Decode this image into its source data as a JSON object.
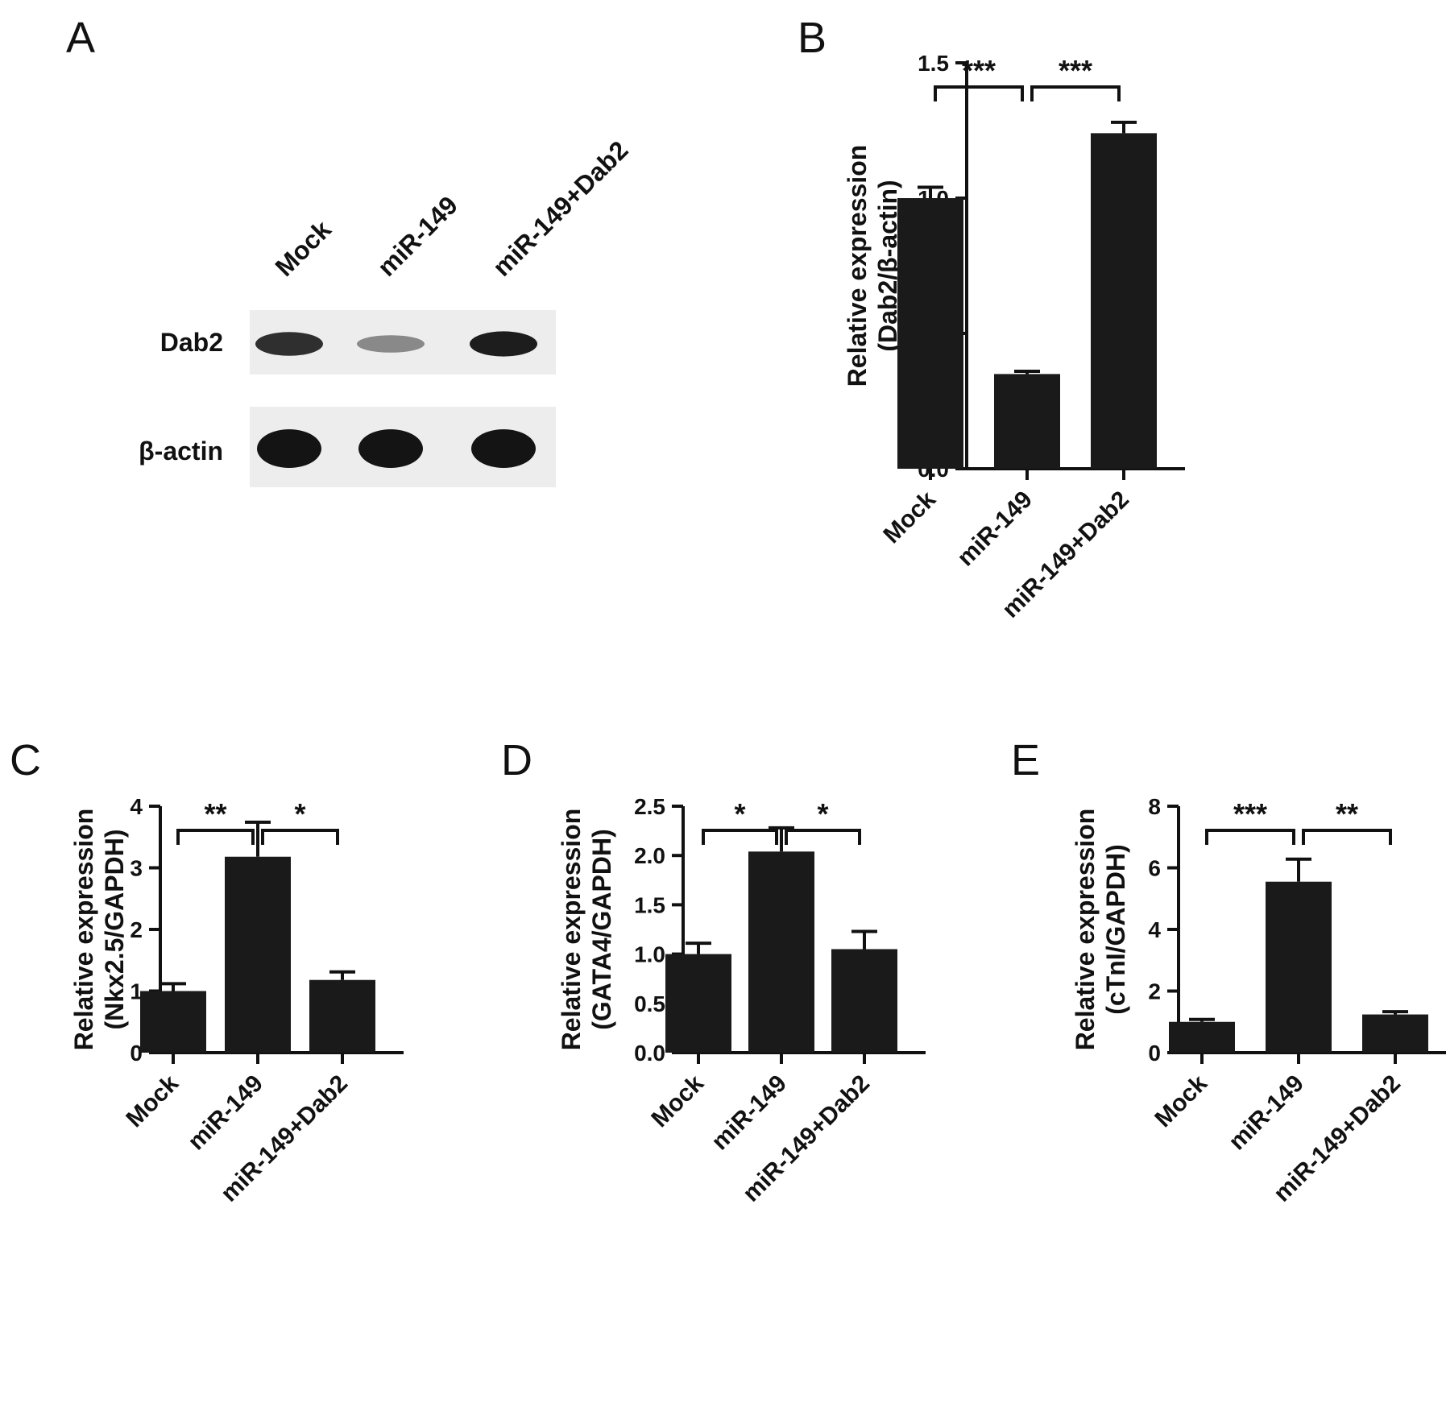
{
  "panel_a": {
    "letter": "A",
    "lanes": [
      "Mock",
      "miR-149",
      "miR-149+Dab2"
    ],
    "rows": [
      {
        "label": "Dab2",
        "intensity": [
          0.85,
          0.35,
          0.95
        ]
      },
      {
        "label": "β-actin",
        "intensity": [
          1.0,
          1.0,
          1.0
        ]
      }
    ]
  },
  "chart_data": [
    {
      "panel": "B",
      "type": "bar",
      "categories": [
        "Mock",
        "miR-149",
        "miR-149+Dab2"
      ],
      "values": [
        1.0,
        0.35,
        1.24
      ],
      "errors": [
        0.04,
        0.01,
        0.04
      ],
      "ylabel_lines": [
        "Relative expression",
        "(Dab2/β-actin)"
      ],
      "ylim": [
        0,
        1.5
      ],
      "yticks": [
        0.0,
        0.5,
        1.0,
        1.5
      ],
      "ytick_labels": [
        "0.0",
        "0.5",
        "1.0",
        "1.5"
      ],
      "significance": [
        {
          "from": 0,
          "to": 1,
          "label": "***"
        },
        {
          "from": 1,
          "to": 2,
          "label": "***"
        }
      ],
      "bar_color": "#1a1a1a"
    },
    {
      "panel": "C",
      "type": "bar",
      "categories": [
        "Mock",
        "miR-149",
        "miR-149+Dab2"
      ],
      "values": [
        1.0,
        3.18,
        1.18
      ],
      "errors": [
        0.12,
        0.56,
        0.13
      ],
      "ylabel_lines": [
        "Relative expression",
        "(Nkx2.5/GAPDH)"
      ],
      "ylim": [
        0,
        4
      ],
      "yticks": [
        0,
        1,
        2,
        3,
        4
      ],
      "ytick_labels": [
        "0",
        "1",
        "2",
        "3",
        "4"
      ],
      "significance": [
        {
          "from": 0,
          "to": 1,
          "label": "**"
        },
        {
          "from": 1,
          "to": 2,
          "label": "*"
        }
      ],
      "bar_color": "#1a1a1a"
    },
    {
      "panel": "D",
      "type": "bar",
      "categories": [
        "Mock",
        "miR-149",
        "miR-149+Dab2"
      ],
      "values": [
        1.0,
        2.04,
        1.05
      ],
      "errors": [
        0.11,
        0.24,
        0.18
      ],
      "ylabel_lines": [
        "Relative expression",
        "(GATA4/GAPDH)"
      ],
      "ylim": [
        0,
        2.5
      ],
      "yticks": [
        0.0,
        0.5,
        1.0,
        1.5,
        2.0,
        2.5
      ],
      "ytick_labels": [
        "0.0",
        "0.5",
        "1.0",
        "1.5",
        "2.0",
        "2.5"
      ],
      "significance": [
        {
          "from": 0,
          "to": 1,
          "label": "*"
        },
        {
          "from": 1,
          "to": 2,
          "label": "*"
        }
      ],
      "bar_color": "#1a1a1a"
    },
    {
      "panel": "E",
      "type": "bar",
      "categories": [
        "Mock",
        "miR-149",
        "miR-149+Dab2"
      ],
      "values": [
        1.0,
        5.55,
        1.24
      ],
      "errors": [
        0.08,
        0.73,
        0.09
      ],
      "ylabel_lines": [
        "Relative expression",
        "(cTnI/GAPDH)"
      ],
      "ylim": [
        0,
        8
      ],
      "yticks": [
        0,
        2,
        4,
        6,
        8
      ],
      "ytick_labels": [
        "0",
        "2",
        "4",
        "6",
        "8"
      ],
      "significance": [
        {
          "from": 0,
          "to": 1,
          "label": "***"
        },
        {
          "from": 1,
          "to": 2,
          "label": "**"
        }
      ],
      "bar_color": "#1a1a1a"
    }
  ]
}
